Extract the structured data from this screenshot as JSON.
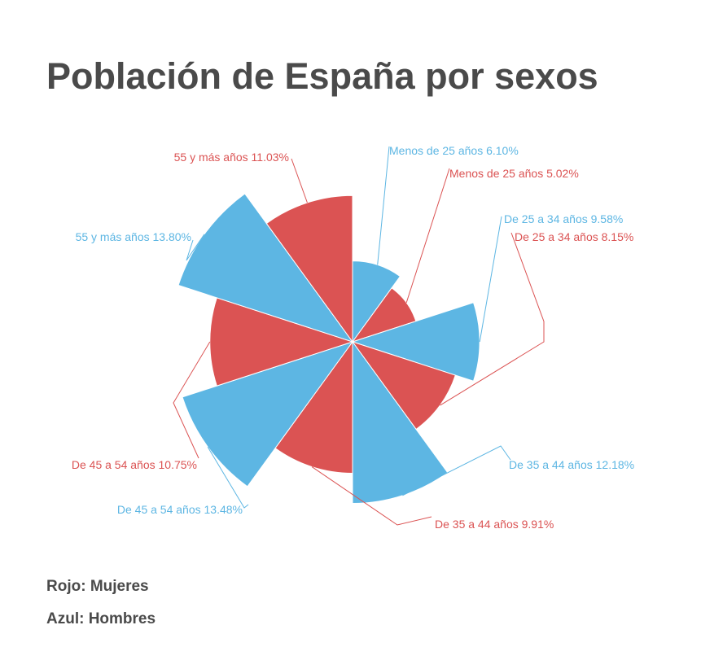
{
  "title": "Población de España por sexos",
  "chart_data": {
    "type": "polar-area",
    "unit": "%",
    "categories": [
      "Menos de 25 años",
      "De 25 a 34 años",
      "De 35 a 44 años",
      "De 45 a 54 años",
      "55 y más años"
    ],
    "series": [
      {
        "name": "Hombres",
        "color": "#5db6e3",
        "values": [
          6.1,
          9.58,
          12.18,
          13.48,
          13.8
        ]
      },
      {
        "name": "Mujeres",
        "color": "#db5353",
        "values": [
          5.02,
          8.15,
          9.91,
          10.75,
          11.03
        ]
      }
    ],
    "labels": [
      {
        "series": "Hombres",
        "category": "Menos de 25 años",
        "text": "Menos de 25 años 6.10%"
      },
      {
        "series": "Mujeres",
        "category": "Menos de 25 años",
        "text": "Menos de 25 años 5.02%"
      },
      {
        "series": "Hombres",
        "category": "De 25 a 34 años",
        "text": "De 25 a 34 años 9.58%"
      },
      {
        "series": "Mujeres",
        "category": "De 25 a 34 años",
        "text": "De 25 a 34 años 8.15%"
      },
      {
        "series": "Hombres",
        "category": "De 35 a 44 años",
        "text": "De 35 a 44 años 12.18%"
      },
      {
        "series": "Mujeres",
        "category": "De 35 a 44 años",
        "text": "De 35 a 44 años 9.91%"
      },
      {
        "series": "Hombres",
        "category": "De 45 a 54 años",
        "text": "De 45 a 54 años 13.48%"
      },
      {
        "series": "Mujeres",
        "category": "De 45 a 54 años",
        "text": "De 45 a 54 años 10.75%"
      },
      {
        "series": "Hombres",
        "category": "55 y más años",
        "text": "55 y más años 13.80%"
      },
      {
        "series": "Mujeres",
        "category": "55 y más años",
        "text": "55 y más años 11.03%"
      }
    ]
  },
  "legend": {
    "line1": "Rojo: Mujeres",
    "line2": "Azul: Hombres"
  }
}
